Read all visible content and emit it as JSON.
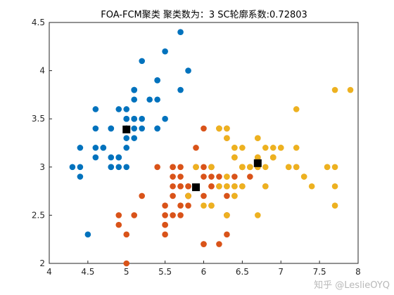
{
  "chart_data": {
    "type": "scatter",
    "title": "FOA-FCM聚类  聚类数为：3  SC轮廓系数:0.72803",
    "xlabel": "",
    "ylabel": "",
    "xlim": [
      4,
      8
    ],
    "ylim": [
      2,
      4.5
    ],
    "xticks": [
      "4",
      "4.5",
      "5",
      "5.5",
      "6",
      "6.5",
      "7",
      "7.5",
      "8"
    ],
    "yticks": [
      "2",
      "2.5",
      "3",
      "3.5",
      "4",
      "4.5"
    ],
    "grid": false,
    "series": [
      {
        "color": "#0072BD",
        "points": [
          [
            5.1,
            3.5
          ],
          [
            4.9,
            3.0
          ],
          [
            4.7,
            3.2
          ],
          [
            4.6,
            3.1
          ],
          [
            5.0,
            3.6
          ],
          [
            5.4,
            3.9
          ],
          [
            4.6,
            3.4
          ],
          [
            5.0,
            3.4
          ],
          [
            4.4,
            2.9
          ],
          [
            4.9,
            3.1
          ],
          [
            5.4,
            3.7
          ],
          [
            4.8,
            3.4
          ],
          [
            4.8,
            3.0
          ],
          [
            4.3,
            3.0
          ],
          [
            5.8,
            4.0
          ],
          [
            5.7,
            4.4
          ],
          [
            5.4,
            3.9
          ],
          [
            5.1,
            3.5
          ],
          [
            5.7,
            3.8
          ],
          [
            5.1,
            3.8
          ],
          [
            5.4,
            3.4
          ],
          [
            5.1,
            3.7
          ],
          [
            4.6,
            3.6
          ],
          [
            5.1,
            3.3
          ],
          [
            4.8,
            3.4
          ],
          [
            5.0,
            3.0
          ],
          [
            5.0,
            3.4
          ],
          [
            5.2,
            3.5
          ],
          [
            5.2,
            3.4
          ],
          [
            4.7,
            3.2
          ],
          [
            4.8,
            3.1
          ],
          [
            5.4,
            3.4
          ],
          [
            5.2,
            4.1
          ],
          [
            5.5,
            4.2
          ],
          [
            4.9,
            3.1
          ],
          [
            5.0,
            3.2
          ],
          [
            5.5,
            3.5
          ],
          [
            4.9,
            3.6
          ],
          [
            4.4,
            3.0
          ],
          [
            5.1,
            3.4
          ],
          [
            5.0,
            3.5
          ],
          [
            4.5,
            2.3
          ],
          [
            4.4,
            3.2
          ],
          [
            5.0,
            3.5
          ],
          [
            5.1,
            3.8
          ],
          [
            4.8,
            3.0
          ],
          [
            5.1,
            3.8
          ],
          [
            4.6,
            3.2
          ],
          [
            5.3,
            3.7
          ],
          [
            5.0,
            3.3
          ]
        ]
      },
      {
        "color": "#D95319",
        "points": [
          [
            5.5,
            2.3
          ],
          [
            6.5,
            2.8
          ],
          [
            5.7,
            2.8
          ],
          [
            6.3,
            3.3
          ],
          [
            4.9,
            2.4
          ],
          [
            6.6,
            2.9
          ],
          [
            5.2,
            2.7
          ],
          [
            5.0,
            2.0
          ],
          [
            5.9,
            3.0
          ],
          [
            6.0,
            2.2
          ],
          [
            6.1,
            2.9
          ],
          [
            5.6,
            2.9
          ],
          [
            5.6,
            3.0
          ],
          [
            5.8,
            2.7
          ],
          [
            6.2,
            2.2
          ],
          [
            5.6,
            2.5
          ],
          [
            5.9,
            3.2
          ],
          [
            6.1,
            2.8
          ],
          [
            6.3,
            2.5
          ],
          [
            6.1,
            2.8
          ],
          [
            6.4,
            2.9
          ],
          [
            6.6,
            3.0
          ],
          [
            6.0,
            2.9
          ],
          [
            5.7,
            2.6
          ],
          [
            5.5,
            2.4
          ],
          [
            5.5,
            2.4
          ],
          [
            5.8,
            2.7
          ],
          [
            6.0,
            2.7
          ],
          [
            5.4,
            3.0
          ],
          [
            6.0,
            3.4
          ],
          [
            6.3,
            2.3
          ],
          [
            5.6,
            3.0
          ],
          [
            5.5,
            2.5
          ],
          [
            5.5,
            2.6
          ],
          [
            6.1,
            3.0
          ],
          [
            5.8,
            2.6
          ],
          [
            5.0,
            2.3
          ],
          [
            5.6,
            2.7
          ],
          [
            5.7,
            3.0
          ],
          [
            5.7,
            2.9
          ],
          [
            6.2,
            2.9
          ],
          [
            5.1,
            2.5
          ],
          [
            5.7,
            2.8
          ],
          [
            5.8,
            2.7
          ],
          [
            4.9,
            2.5
          ],
          [
            5.7,
            2.5
          ],
          [
            5.8,
            2.8
          ],
          [
            6.4,
            2.7
          ],
          [
            6.5,
            3.0
          ],
          [
            6.0,
            2.2
          ],
          [
            5.6,
            2.8
          ],
          [
            6.3,
            2.7
          ],
          [
            6.2,
            2.8
          ],
          [
            6.1,
            3.0
          ],
          [
            6.4,
            2.8
          ],
          [
            6.3,
            2.8
          ],
          [
            6.1,
            2.6
          ],
          [
            6.3,
            3.4
          ],
          [
            6.4,
            3.1
          ],
          [
            6.0,
            3.0
          ],
          [
            5.8,
            2.7
          ],
          [
            6.7,
            3.1
          ],
          [
            6.9,
            3.1
          ],
          [
            6.7,
            3.0
          ],
          [
            6.3,
            2.5
          ],
          [
            6.5,
            3.0
          ],
          [
            6.2,
            3.4
          ],
          [
            5.9,
            3.0
          ],
          [
            5.8,
            2.8
          ],
          [
            6.8,
            2.8
          ],
          [
            7.2,
            3.0
          ]
        ]
      },
      {
        "color": "#EDB120",
        "points": [
          [
            7.0,
            3.2
          ],
          [
            6.4,
            3.2
          ],
          [
            6.9,
            3.1
          ],
          [
            6.7,
            3.1
          ],
          [
            6.3,
            2.9
          ],
          [
            6.6,
            3.0
          ],
          [
            6.8,
            2.8
          ],
          [
            6.7,
            3.0
          ],
          [
            6.2,
            3.4
          ],
          [
            6.1,
            2.6
          ],
          [
            7.1,
            3.0
          ],
          [
            6.5,
            3.0
          ],
          [
            7.6,
            3.0
          ],
          [
            7.3,
            2.9
          ],
          [
            6.7,
            2.5
          ],
          [
            7.2,
            3.6
          ],
          [
            6.5,
            3.2
          ],
          [
            6.4,
            2.7
          ],
          [
            6.8,
            3.0
          ],
          [
            6.4,
            3.2
          ],
          [
            6.5,
            3.0
          ],
          [
            7.7,
            3.8
          ],
          [
            7.7,
            2.6
          ],
          [
            6.9,
            3.2
          ],
          [
            7.7,
            2.8
          ],
          [
            6.7,
            3.3
          ],
          [
            7.2,
            3.2
          ],
          [
            6.2,
            2.8
          ],
          [
            6.1,
            3.0
          ],
          [
            6.4,
            2.8
          ],
          [
            7.2,
            3.0
          ],
          [
            7.4,
            2.8
          ],
          [
            7.9,
            3.8
          ],
          [
            6.3,
            2.8
          ],
          [
            7.7,
            3.0
          ],
          [
            6.3,
            3.4
          ],
          [
            6.4,
            3.1
          ],
          [
            6.9,
            3.1
          ],
          [
            6.7,
            3.1
          ],
          [
            6.9,
            3.1
          ],
          [
            5.8,
            2.7
          ],
          [
            6.8,
            3.2
          ],
          [
            6.7,
            3.3
          ],
          [
            6.7,
            3.0
          ],
          [
            6.3,
            2.5
          ],
          [
            6.5,
            3.0
          ],
          [
            6.2,
            3.4
          ],
          [
            5.9,
            3.0
          ],
          [
            7.0,
            3.2
          ],
          [
            6.0,
            2.6
          ],
          [
            6.5,
            2.8
          ],
          [
            6.3,
            3.3
          ],
          [
            7.1,
            3.0
          ],
          [
            6.3,
            2.9
          ],
          [
            6.5,
            3.0
          ],
          [
            7.6,
            3.0
          ],
          [
            7.3,
            2.9
          ],
          [
            6.6,
            3.0
          ]
        ]
      }
    ],
    "centers": {
      "color": "#000000",
      "points": [
        [
          5.0,
          3.39
        ],
        [
          5.9,
          2.79
        ],
        [
          6.7,
          3.04
        ]
      ]
    }
  },
  "watermark": "知乎 @LeslieOYQ"
}
